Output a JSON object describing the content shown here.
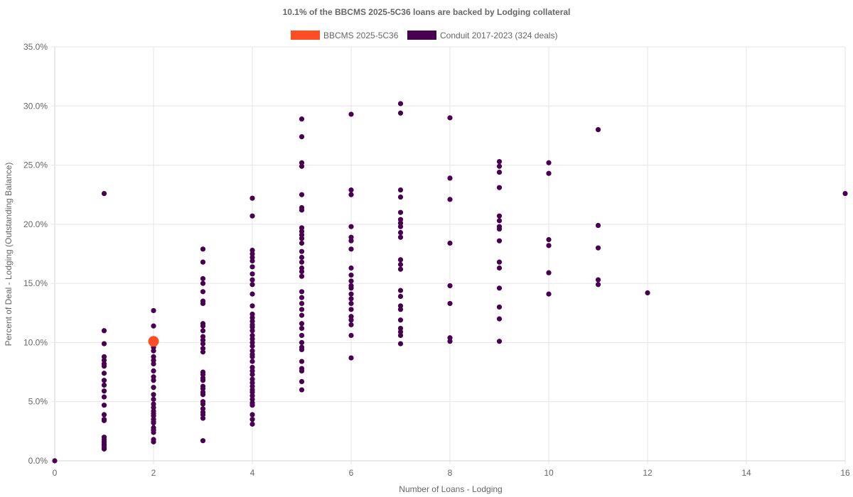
{
  "chart_data": {
    "type": "scatter",
    "title": "10.1% of the BBCMS 2025-5C36 loans are backed by Lodging collateral",
    "xlabel": "Number of Loans - Lodging",
    "ylabel": "Percent of Deal - Lodging (Outstanding Balance)",
    "xlim": [
      0,
      16
    ],
    "ylim": [
      0,
      35
    ],
    "x_ticks": [
      0,
      2,
      4,
      6,
      8,
      10,
      12,
      14,
      16
    ],
    "x_tick_labels": [
      "0",
      "2",
      "4",
      "6",
      "8",
      "10",
      "12",
      "14",
      "16"
    ],
    "y_ticks": [
      0,
      5,
      10,
      15,
      20,
      25,
      30,
      35
    ],
    "y_tick_labels": [
      "0.0%",
      "5.0%",
      "10.0%",
      "15.0%",
      "20.0%",
      "25.0%",
      "30.0%",
      "35.0%"
    ],
    "grid": true,
    "legend_position": "top",
    "series": [
      {
        "name": "BBCMS 2025-5C36",
        "color": "#ff4d24",
        "points": [
          [
            2,
            10.1
          ]
        ]
      },
      {
        "name": "Conduit 2017-2023 (324 deals)",
        "color": "#4a0050",
        "points": [
          [
            0,
            0
          ],
          [
            1,
            22.6
          ],
          [
            1,
            11.0
          ],
          [
            1,
            9.9
          ],
          [
            1,
            8.8
          ],
          [
            1,
            8.5
          ],
          [
            1,
            8.2
          ],
          [
            1,
            8.0
          ],
          [
            1,
            7.4
          ],
          [
            1,
            6.8
          ],
          [
            1,
            6.4
          ],
          [
            1,
            5.9
          ],
          [
            1,
            5.4
          ],
          [
            1,
            4.7
          ],
          [
            1,
            3.9
          ],
          [
            1,
            3.5
          ],
          [
            1,
            3.4
          ],
          [
            1,
            2.0
          ],
          [
            1,
            1.8
          ],
          [
            1,
            1.6
          ],
          [
            1,
            1.4
          ],
          [
            1,
            1.3
          ],
          [
            1,
            1.1
          ],
          [
            1,
            1.0
          ],
          [
            2,
            12.7
          ],
          [
            2,
            11.4
          ],
          [
            2,
            10.1
          ],
          [
            2,
            9.6
          ],
          [
            2,
            9.3
          ],
          [
            2,
            8.8
          ],
          [
            2,
            8.5
          ],
          [
            2,
            8.2
          ],
          [
            2,
            7.6
          ],
          [
            2,
            7.1
          ],
          [
            2,
            6.8
          ],
          [
            2,
            6.2
          ],
          [
            2,
            5.6
          ],
          [
            2,
            5.2
          ],
          [
            2,
            4.8
          ],
          [
            2,
            4.5
          ],
          [
            2,
            4.2
          ],
          [
            2,
            4.0
          ],
          [
            2,
            3.8
          ],
          [
            2,
            3.5
          ],
          [
            2,
            3.3
          ],
          [
            2,
            3.2
          ],
          [
            2,
            2.8
          ],
          [
            2,
            2.6
          ],
          [
            2,
            2.4
          ],
          [
            2,
            1.8
          ],
          [
            2,
            1.6
          ],
          [
            3,
            17.9
          ],
          [
            3,
            16.8
          ],
          [
            3,
            15.4
          ],
          [
            3,
            15.0
          ],
          [
            3,
            14.3
          ],
          [
            3,
            13.5
          ],
          [
            3,
            13.3
          ],
          [
            3,
            11.6
          ],
          [
            3,
            11.4
          ],
          [
            3,
            11.0
          ],
          [
            3,
            10.5
          ],
          [
            3,
            10.2
          ],
          [
            3,
            9.9
          ],
          [
            3,
            9.5
          ],
          [
            3,
            9.2
          ],
          [
            3,
            7.5
          ],
          [
            3,
            7.3
          ],
          [
            3,
            7.0
          ],
          [
            3,
            6.8
          ],
          [
            3,
            6.3
          ],
          [
            3,
            6.1
          ],
          [
            3,
            5.8
          ],
          [
            3,
            5.6
          ],
          [
            3,
            5.0
          ],
          [
            3,
            4.8
          ],
          [
            3,
            4.4
          ],
          [
            3,
            4.1
          ],
          [
            3,
            3.9
          ],
          [
            3,
            3.6
          ],
          [
            3,
            1.7
          ],
          [
            4,
            22.2
          ],
          [
            4,
            20.7
          ],
          [
            4,
            17.8
          ],
          [
            4,
            17.5
          ],
          [
            4,
            17.2
          ],
          [
            4,
            16.9
          ],
          [
            4,
            16.4
          ],
          [
            4,
            15.8
          ],
          [
            4,
            15.3
          ],
          [
            4,
            14.9
          ],
          [
            4,
            14.1
          ],
          [
            4,
            13.1
          ],
          [
            4,
            12.4
          ],
          [
            4,
            12.1
          ],
          [
            4,
            11.8
          ],
          [
            4,
            11.5
          ],
          [
            4,
            11.3
          ],
          [
            4,
            11.0
          ],
          [
            4,
            10.6
          ],
          [
            4,
            10.3
          ],
          [
            4,
            10.0
          ],
          [
            4,
            9.7
          ],
          [
            4,
            9.3
          ],
          [
            4,
            9.0
          ],
          [
            4,
            8.8
          ],
          [
            4,
            8.4
          ],
          [
            4,
            7.9
          ],
          [
            4,
            7.6
          ],
          [
            4,
            7.3
          ],
          [
            4,
            6.9
          ],
          [
            4,
            6.6
          ],
          [
            4,
            6.3
          ],
          [
            4,
            6.0
          ],
          [
            4,
            5.8
          ],
          [
            4,
            5.5
          ],
          [
            4,
            5.2
          ],
          [
            4,
            4.9
          ],
          [
            4,
            4.7
          ],
          [
            4,
            3.9
          ],
          [
            4,
            3.5
          ],
          [
            4,
            3.1
          ],
          [
            5,
            28.9
          ],
          [
            5,
            27.4
          ],
          [
            5,
            25.2
          ],
          [
            5,
            24.9
          ],
          [
            5,
            22.5
          ],
          [
            5,
            21.4
          ],
          [
            5,
            21.2
          ],
          [
            5,
            19.7
          ],
          [
            5,
            19.4
          ],
          [
            5,
            19.1
          ],
          [
            5,
            18.8
          ],
          [
            5,
            18.4
          ],
          [
            5,
            17.7
          ],
          [
            5,
            17.2
          ],
          [
            5,
            16.8
          ],
          [
            5,
            16.3
          ],
          [
            5,
            16.0
          ],
          [
            5,
            15.6
          ],
          [
            5,
            14.3
          ],
          [
            5,
            13.8
          ],
          [
            5,
            13.3
          ],
          [
            5,
            12.8
          ],
          [
            5,
            12.3
          ],
          [
            5,
            11.6
          ],
          [
            5,
            11.2
          ],
          [
            5,
            10.6
          ],
          [
            5,
            10.0
          ],
          [
            5,
            9.6
          ],
          [
            5,
            9.4
          ],
          [
            5,
            8.4
          ],
          [
            5,
            7.8
          ],
          [
            5,
            7.6
          ],
          [
            5,
            6.7
          ],
          [
            5,
            6.0
          ],
          [
            6,
            29.3
          ],
          [
            6,
            22.9
          ],
          [
            6,
            22.5
          ],
          [
            6,
            19.8
          ],
          [
            6,
            18.9
          ],
          [
            6,
            18.6
          ],
          [
            6,
            17.9
          ],
          [
            6,
            16.3
          ],
          [
            6,
            15.7
          ],
          [
            6,
            15.2
          ],
          [
            6,
            14.8
          ],
          [
            6,
            14.6
          ],
          [
            6,
            14.1
          ],
          [
            6,
            13.7
          ],
          [
            6,
            13.3
          ],
          [
            6,
            12.8
          ],
          [
            6,
            12.2
          ],
          [
            6,
            11.9
          ],
          [
            6,
            11.5
          ],
          [
            6,
            10.6
          ],
          [
            6,
            8.7
          ],
          [
            7,
            30.2
          ],
          [
            7,
            29.4
          ],
          [
            7,
            22.9
          ],
          [
            7,
            22.3
          ],
          [
            7,
            21.0
          ],
          [
            7,
            20.4
          ],
          [
            7,
            20.1
          ],
          [
            7,
            19.8
          ],
          [
            7,
            19.3
          ],
          [
            7,
            18.9
          ],
          [
            7,
            17.0
          ],
          [
            7,
            16.6
          ],
          [
            7,
            16.2
          ],
          [
            7,
            14.4
          ],
          [
            7,
            13.9
          ],
          [
            7,
            13.1
          ],
          [
            7,
            12.8
          ],
          [
            7,
            11.9
          ],
          [
            7,
            11.2
          ],
          [
            7,
            10.9
          ],
          [
            7,
            10.6
          ],
          [
            7,
            9.9
          ],
          [
            8,
            29.0
          ],
          [
            8,
            23.9
          ],
          [
            8,
            22.1
          ],
          [
            8,
            18.4
          ],
          [
            8,
            14.8
          ],
          [
            8,
            13.3
          ],
          [
            8,
            10.4
          ],
          [
            8,
            10.1
          ],
          [
            9,
            25.3
          ],
          [
            9,
            24.9
          ],
          [
            9,
            24.4
          ],
          [
            9,
            23.1
          ],
          [
            9,
            20.7
          ],
          [
            9,
            20.3
          ],
          [
            9,
            19.8
          ],
          [
            9,
            19.6
          ],
          [
            9,
            18.6
          ],
          [
            9,
            16.8
          ],
          [
            9,
            16.3
          ],
          [
            9,
            14.6
          ],
          [
            9,
            13.0
          ],
          [
            9,
            12.0
          ],
          [
            9,
            10.1
          ],
          [
            10,
            25.2
          ],
          [
            10,
            24.3
          ],
          [
            10,
            18.7
          ],
          [
            10,
            18.2
          ],
          [
            10,
            15.9
          ],
          [
            10,
            14.1
          ],
          [
            11,
            28.0
          ],
          [
            11,
            19.9
          ],
          [
            11,
            18.0
          ],
          [
            11,
            15.3
          ],
          [
            11,
            14.9
          ],
          [
            12,
            14.2
          ],
          [
            16,
            22.6
          ]
        ]
      }
    ]
  }
}
